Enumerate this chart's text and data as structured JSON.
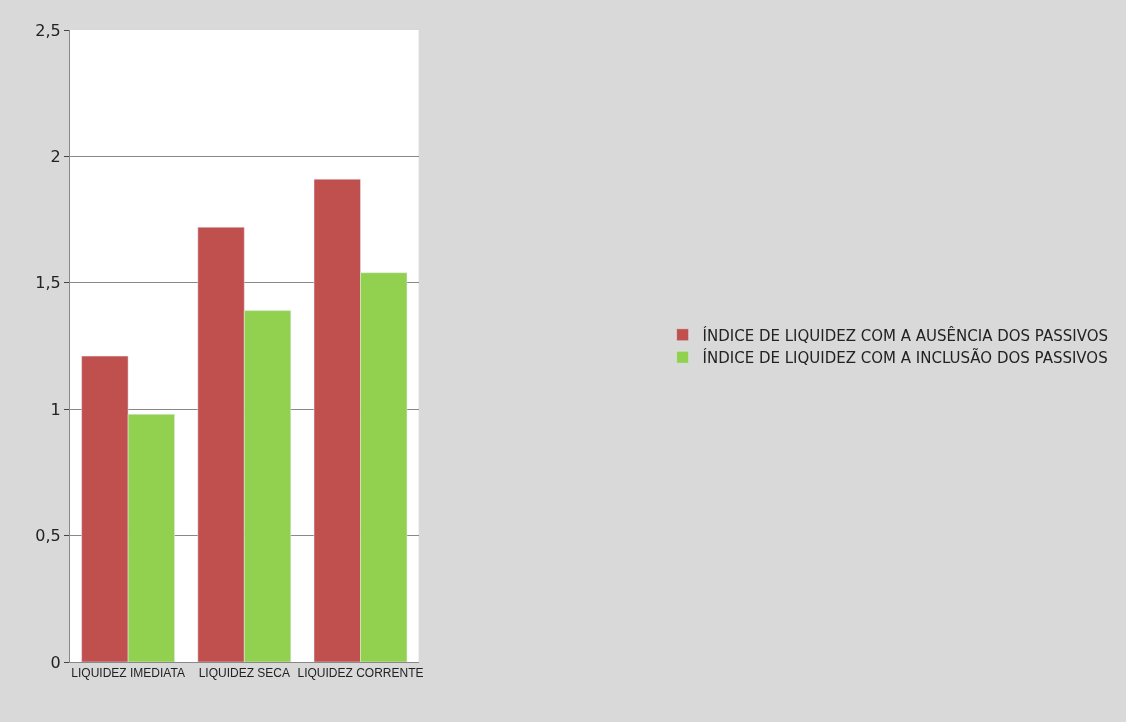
{
  "chart_data": {
    "type": "bar",
    "categories": [
      "LIQUIDEZ IMEDIATA",
      "LIQUIDEZ SECA",
      "LIQUIDEZ CORRENTE"
    ],
    "series": [
      {
        "name": "ÍNDICE DE LIQUIDEZ COM A AUSÊNCIA DOS PASSIVOS",
        "color": "#c0504d",
        "values": [
          1.21,
          1.72,
          1.91
        ]
      },
      {
        "name": "ÍNDICE DE LIQUIDEZ COM A INCLUSÃO DOS PASSIVOS",
        "color": "#92d050",
        "values": [
          0.98,
          1.39,
          1.54
        ]
      }
    ],
    "ylim": [
      0,
      2.5
    ],
    "yticks": [
      0,
      {
        "value": 0.5,
        "label": "0,5"
      },
      1,
      {
        "value": 1.5,
        "label": "1,5"
      },
      2,
      {
        "value": 2.5,
        "label": "2,5"
      }
    ],
    "grid": "y",
    "legend": "right"
  }
}
